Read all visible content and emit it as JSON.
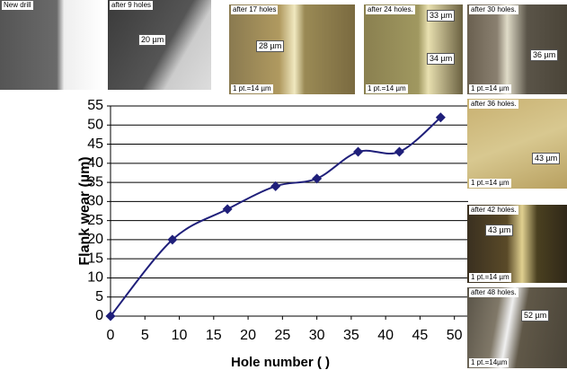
{
  "chart_data": {
    "type": "line",
    "x": [
      0,
      9,
      17,
      24,
      30,
      36,
      42,
      48
    ],
    "series": [
      {
        "name": "Flank wear",
        "color": "#1f1f7a",
        "values": [
          0,
          20,
          28,
          34,
          36,
          43,
          43,
          52
        ]
      }
    ],
    "xlabel": "Hole number ( )",
    "ylabel": "Flank wear (µm)",
    "xlim": [
      0,
      52
    ],
    "xticks": [
      0,
      5,
      10,
      15,
      20,
      25,
      30,
      35,
      40,
      45,
      50
    ],
    "ylim": [
      0,
      55
    ],
    "yticks": [
      0,
      5,
      10,
      15,
      20,
      25,
      30,
      35,
      40,
      45,
      50,
      55
    ],
    "grid": true
  },
  "thumbnails": [
    {
      "label": "New drill"
    },
    {
      "label": "after 9 holes",
      "notes": [
        "20 µm"
      ]
    },
    {
      "label": "after 17 holes",
      "notes": [
        "28 µm"
      ],
      "scale": "1 pt.=14 µm"
    },
    {
      "label": "after 24 holes.",
      "notes": [
        "33 µm",
        "34 µm"
      ],
      "scale": "1 pt.=14 µm"
    },
    {
      "label": "after 30 holes.",
      "notes": [
        "36 µm"
      ],
      "scale": "1 pt.=14 µm"
    },
    {
      "label": "after 36 holes.",
      "notes": [
        "43 µm"
      ],
      "scale": "1 pt.=14 µm"
    },
    {
      "label": "after 42 holes.",
      "notes": [
        "43 µm"
      ],
      "scale": "1 pt.=14 µm"
    },
    {
      "label": "after 48 holes.",
      "notes": [
        "52 µm"
      ],
      "scale": "1 pt.=14µm"
    }
  ]
}
